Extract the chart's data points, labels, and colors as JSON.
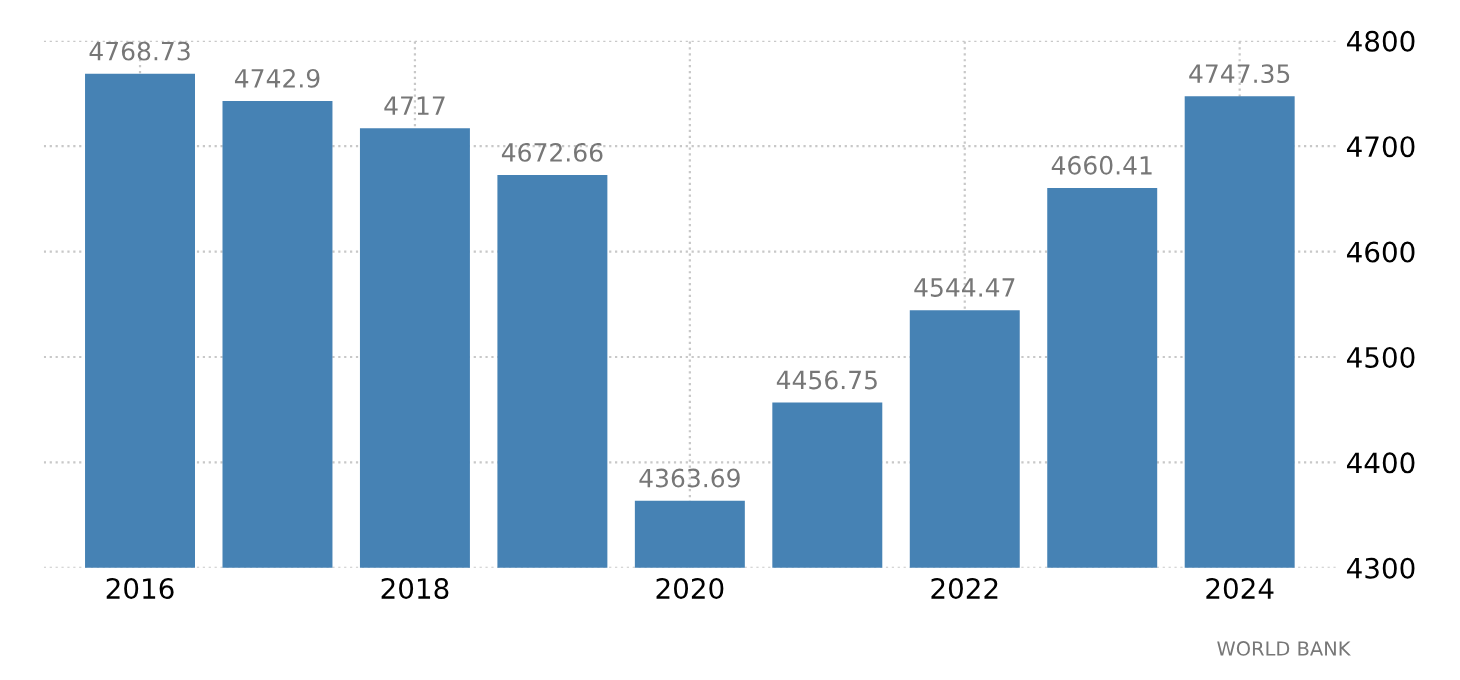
{
  "chart_data": {
    "type": "bar",
    "categories": [
      "2016",
      null,
      "2018",
      null,
      "2020",
      null,
      "2022",
      null,
      "2024"
    ],
    "values": [
      4768.73,
      4742.9,
      4717,
      4672.66,
      4363.69,
      4456.75,
      4544.47,
      4660.41,
      4747.35
    ],
    "color": "#4682b4",
    "ylim": [
      4300,
      4800
    ],
    "yticks": [
      4300,
      4400,
      4500,
      4600,
      4700,
      4800
    ],
    "grid": true,
    "data_labels": true,
    "annotations": [
      "WORLD BANK"
    ]
  }
}
